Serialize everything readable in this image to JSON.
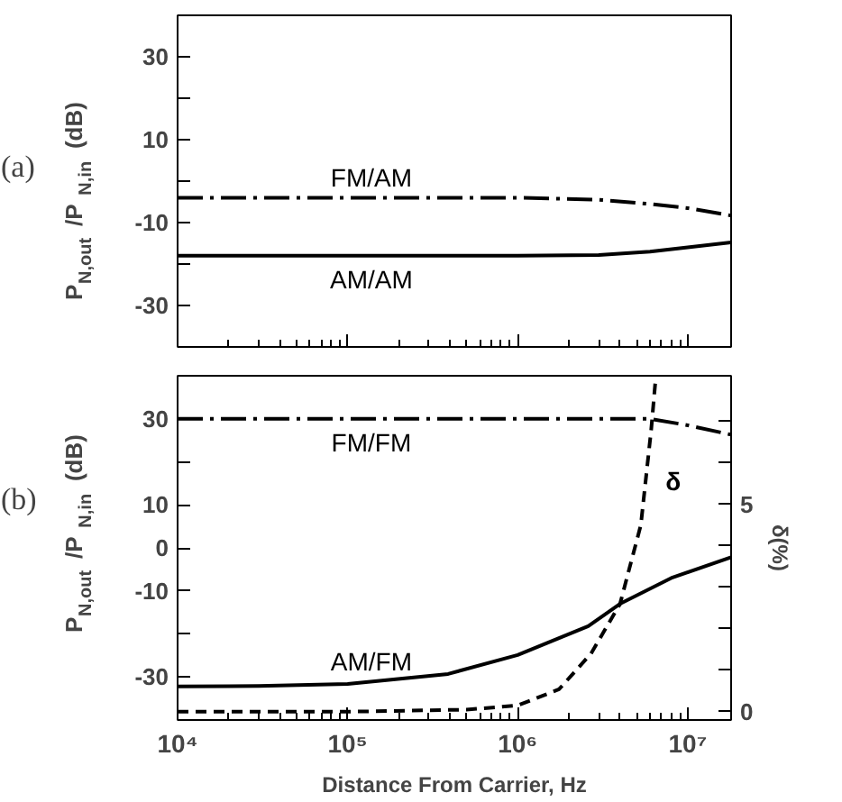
{
  "chart_data": [
    {
      "type": "line",
      "xlabel": null,
      "ylabel": "P$_{N,out}$/P$_{N,in}$ (dB)",
      "annotations": [
        "(a)"
      ],
      "log": "x",
      "xlim": [
        10000,
        18000000
      ],
      "xticks": [
        {
          "value": 10000,
          "label": null
        },
        {
          "value": 100000,
          "label": null
        },
        {
          "value": 1000000,
          "label": null
        },
        {
          "value": 10000000,
          "label": null
        }
      ],
      "ylim": [
        -40,
        40
      ],
      "yticks": [
        {
          "value": -30,
          "label": "-30"
        },
        {
          "value": -20,
          "label": null
        },
        {
          "value": -10,
          "label": "-10"
        },
        {
          "value": 0,
          "label": null
        },
        {
          "value": 10,
          "label": "10"
        },
        {
          "value": 20,
          "label": null
        },
        {
          "value": 30,
          "label": "30"
        }
      ],
      "tick_labels": "y",
      "grid": false,
      "legend": false,
      "series": [
        {
          "name": "FM/AM",
          "color": "#000000",
          "line_style": "dashdot",
          "x": [
            10000,
            100000,
            1000000,
            3000000,
            6000000,
            10000000,
            18000000
          ],
          "values": [
            -4,
            -4,
            -4,
            -4.5,
            -5.5,
            -6.5,
            -8.3
          ]
        },
        {
          "name": "AM/AM",
          "color": "#000000",
          "line_style": "solid",
          "x": [
            10000,
            100000,
            1000000,
            3000000,
            6000000,
            10000000,
            18000000
          ],
          "values": [
            -18,
            -18,
            -18,
            -17.8,
            -17,
            -16,
            -14.8
          ]
        }
      ]
    },
    {
      "type": "line",
      "xlabel": "Distance From Carrier, Hz",
      "ylabel": "P$_{N,out}$/P$_{N,in}$ (dB)",
      "y2label": "δ(%)",
      "annotations": [
        "(b)"
      ],
      "log": "x",
      "xlim": [
        10000,
        18000000
      ],
      "xticks": [
        {
          "value": 10000,
          "label": "10⁴"
        },
        {
          "value": 100000,
          "label": "10⁵"
        },
        {
          "value": 1000000,
          "label": "10⁶"
        },
        {
          "value": 10000000,
          "label": "10⁷"
        }
      ],
      "ylim": [
        -40,
        40
      ],
      "yticks": [
        {
          "value": -30,
          "label": "-30"
        },
        {
          "value": -20,
          "label": null
        },
        {
          "value": -10,
          "label": "-10"
        },
        {
          "value": 0,
          "label": "0"
        },
        {
          "value": 10,
          "label": "10"
        },
        {
          "value": 20,
          "label": null
        },
        {
          "value": 30,
          "label": "30"
        }
      ],
      "y2lim": [
        -0.2,
        8.1
      ],
      "y2ticks": [
        0,
        {
          "value": 1,
          "label": null
        },
        {
          "value": 2,
          "label": null
        },
        {
          "value": 3,
          "label": null
        },
        {
          "value": 4,
          "label": null
        },
        5,
        {
          "value": 6,
          "label": null
        },
        {
          "value": 7,
          "label": null
        }
      ],
      "grid": false,
      "legend": false,
      "series": [
        {
          "name": "FM/FM",
          "color": "#000000",
          "line_style": "dashdot",
          "x": [
            10000,
            100000,
            1000000,
            3000000,
            6000000,
            10000000,
            18000000
          ],
          "values": [
            30,
            30,
            30,
            30,
            30,
            28.5,
            26.3
          ]
        },
        {
          "name": "AM/FM",
          "color": "#000000",
          "line_style": "solid",
          "x": [
            10000,
            30000,
            100000,
            390000,
            1000000,
            2600000,
            4000000,
            8000000,
            18000000
          ],
          "values": [
            -32.2,
            -32.1,
            -31.6,
            -29.3,
            -24.9,
            -18.2,
            -13,
            -7,
            -2.2
          ]
        },
        {
          "name": "δ",
          "color": "#000000",
          "line_style": "dashed",
          "axis": "y2",
          "x": [
            10000,
            100000,
            500000,
            1000000,
            1750000,
            2700000,
            4000000,
            5300000,
            6100000,
            6500000
          ],
          "values": [
            0,
            0,
            0.05,
            0.15,
            0.54,
            1.4,
            2.6,
            4.5,
            6.8,
            8.1
          ]
        }
      ]
    }
  ]
}
